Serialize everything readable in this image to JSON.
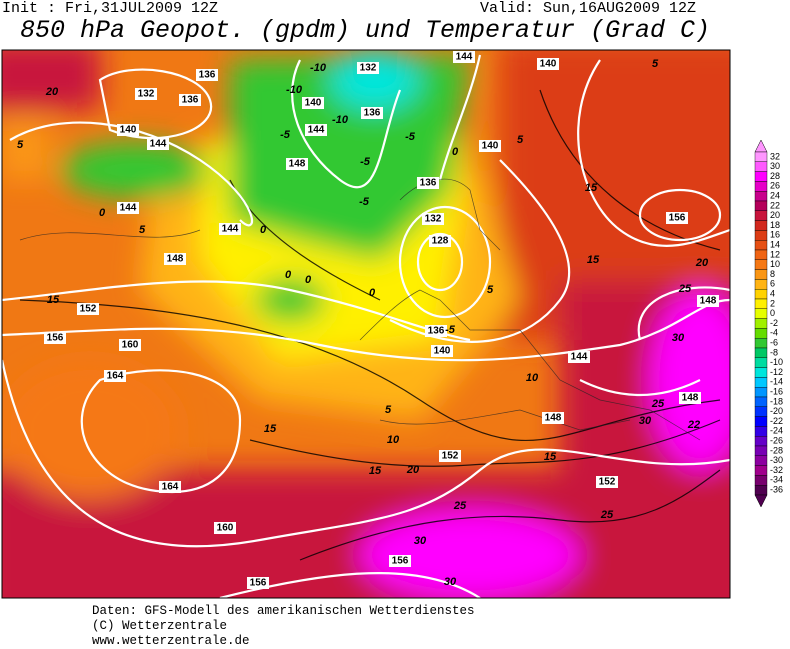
{
  "header": {
    "init": "Init : Fri,31JUL2009 12Z",
    "valid": "Valid: Sun,16AUG2009 12Z",
    "title": "850 hPa Geopot. (gpdm) und Temperatur (Grad C)"
  },
  "colorbar": {
    "labels": [
      "32",
      "30",
      "28",
      "26",
      "24",
      "22",
      "20",
      "18",
      "16",
      "14",
      "12",
      "10",
      "8",
      "6",
      "4",
      "2",
      "0",
      "-2",
      "-4",
      "-6",
      "-8",
      "-10",
      "-12",
      "-14",
      "-16",
      "-18",
      "-20",
      "-22",
      "-24",
      "-26",
      "-28",
      "-30",
      "-32",
      "-34",
      "-36"
    ],
    "colors": [
      "#ff96ff",
      "#ff5aff",
      "#ff00ff",
      "#e600c8",
      "#c8008c",
      "#b4005a",
      "#c8143c",
      "#d2281e",
      "#dc3c14",
      "#e65014",
      "#f06414",
      "#f57814",
      "#fa9614",
      "#ffb414",
      "#ffd200",
      "#fff000",
      "#e6ff00",
      "#a0f000",
      "#64dc00",
      "#32c832",
      "#00c864",
      "#00dca0",
      "#00e6dc",
      "#00c8ff",
      "#0096ff",
      "#0064ff",
      "#0032ff",
      "#0000ff",
      "#3200e6",
      "#6400c8",
      "#7800b4",
      "#8c00a0",
      "#a0008c",
      "#78006e",
      "#500050"
    ]
  },
  "map": {
    "labels": [
      "20",
      "5",
      "0",
      "144",
      "5",
      "148",
      "15",
      "152",
      "156",
      "160",
      "164",
      "164",
      "160",
      "156",
      "15",
      "10",
      "15",
      "20",
      "25",
      "30",
      "156",
      "30",
      "152",
      "15",
      "152",
      "25",
      "148",
      "10",
      "144",
      "140",
      "136",
      "128",
      "132",
      "136",
      "140",
      "140",
      "144",
      "132",
      "-10",
      "-10",
      "140",
      "-5",
      "144",
      "148",
      "-10",
      "136",
      "-5",
      "-5",
      "0",
      "-5",
      "0",
      "0",
      "0",
      "136",
      "132",
      "136",
      "140",
      "144",
      "144",
      "0",
      "5",
      "5",
      "15",
      "156",
      "15",
      "20",
      "25",
      "148",
      "30",
      "25",
      "30",
      "148",
      "22",
      "5",
      "-5",
      "5"
    ]
  },
  "footer": {
    "lines": [
      "Daten: GFS-Modell des amerikanischen Wetterdienstes",
      "(C) Wetterzentrale",
      "www.wetterzentrale.de"
    ]
  }
}
